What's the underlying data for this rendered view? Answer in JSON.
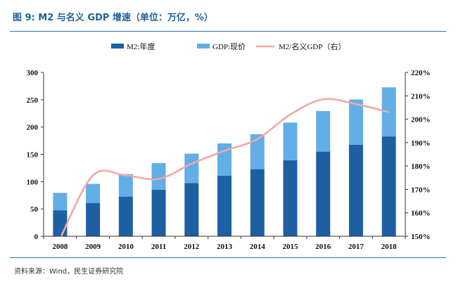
{
  "figure": {
    "title": "图 9:  M2 与名义 GDP 增速（单位：万亿，%）",
    "source": "资料来源：Wind，民生证券研究院"
  },
  "colors": {
    "m2": "#1d5fa3",
    "gdp": "#62aee6",
    "ratio": "#f2a7a7",
    "title": "#1f5f9a",
    "rule": "#2f6fae"
  },
  "legend": [
    {
      "key": "m2",
      "label": "M2:年度",
      "marker": "box",
      "color": "#1d5fa3"
    },
    {
      "key": "gdp",
      "label": "GDP:现价",
      "marker": "box",
      "color": "#62aee6"
    },
    {
      "key": "ratio",
      "label": "M2/名义GDP（右）",
      "marker": "line",
      "color": "#f2a7a7"
    }
  ],
  "chart_data": {
    "type": "bar",
    "stacked": true,
    "categories": [
      "2008",
      "2009",
      "2010",
      "2011",
      "2012",
      "2013",
      "2014",
      "2015",
      "2016",
      "2017",
      "2018"
    ],
    "series": [
      {
        "name": "M2:年度",
        "type": "bar",
        "axis": "left",
        "values": [
          47.5,
          61,
          72.6,
          85.2,
          97.4,
          110.7,
          122.8,
          139.2,
          155,
          167.7,
          182.7
        ]
      },
      {
        "name": "GDP:现价",
        "type": "bar",
        "axis": "left",
        "values": [
          31.9,
          34.9,
          41.2,
          48.8,
          53.9,
          59.3,
          64.1,
          68.9,
          74.4,
          82.7,
          90
        ]
      },
      {
        "name": "M2/名义GDP（右）",
        "type": "line",
        "axis": "right",
        "values": [
          149,
          176,
          176,
          174.5,
          181,
          186.5,
          191.5,
          202,
          208.5,
          206.5,
          203
        ]
      }
    ],
    "ylim": [
      0,
      300
    ],
    "yticks": [
      "0",
      "50",
      "100",
      "150",
      "200",
      "250",
      "300"
    ],
    "y2lim": [
      150,
      220
    ],
    "y2ticks": [
      "150%",
      "160%",
      "170%",
      "180%",
      "190%",
      "200%",
      "210%",
      "220%"
    ],
    "legend_position": "top",
    "grid": false
  }
}
